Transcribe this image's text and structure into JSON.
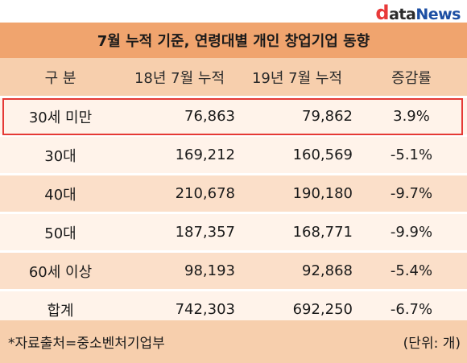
{
  "logo": {
    "d": "d",
    "ata": "ata",
    "news": "News"
  },
  "title": "7월 누적 기준, 연령대별 개인 창업기업 동향",
  "headers": [
    "구  분",
    "18년 7월 누적",
    "19년 7월 누적",
    "증감률"
  ],
  "rows": [
    {
      "label": "30세 미만",
      "y2018": "76,863",
      "y2019": "79,862",
      "change": "3.9%"
    },
    {
      "label": "30대",
      "y2018": "169,212",
      "y2019": "160,569",
      "change": "-5.1%"
    },
    {
      "label": "40대",
      "y2018": "210,678",
      "y2019": "190,180",
      "change": "-9.7%"
    },
    {
      "label": "50대",
      "y2018": "187,357",
      "y2019": "168,771",
      "change": "-9.9%"
    },
    {
      "label": "60세 이상",
      "y2018": "98,193",
      "y2019": "92,868",
      "change": "-5.4%"
    },
    {
      "label": "합계",
      "y2018": "742,303",
      "y2019": "692,250",
      "change": "-6.7%"
    }
  ],
  "footer": {
    "source": "*자료출처=중소벤처기업부",
    "unit": "(단위: 개)"
  },
  "colors": {
    "title_bg": "#f0a46e",
    "header_bg": "#f7cfad",
    "row_light": "#fff3ea",
    "row_dark": "#fbdfc9",
    "highlight": "#e53935"
  }
}
